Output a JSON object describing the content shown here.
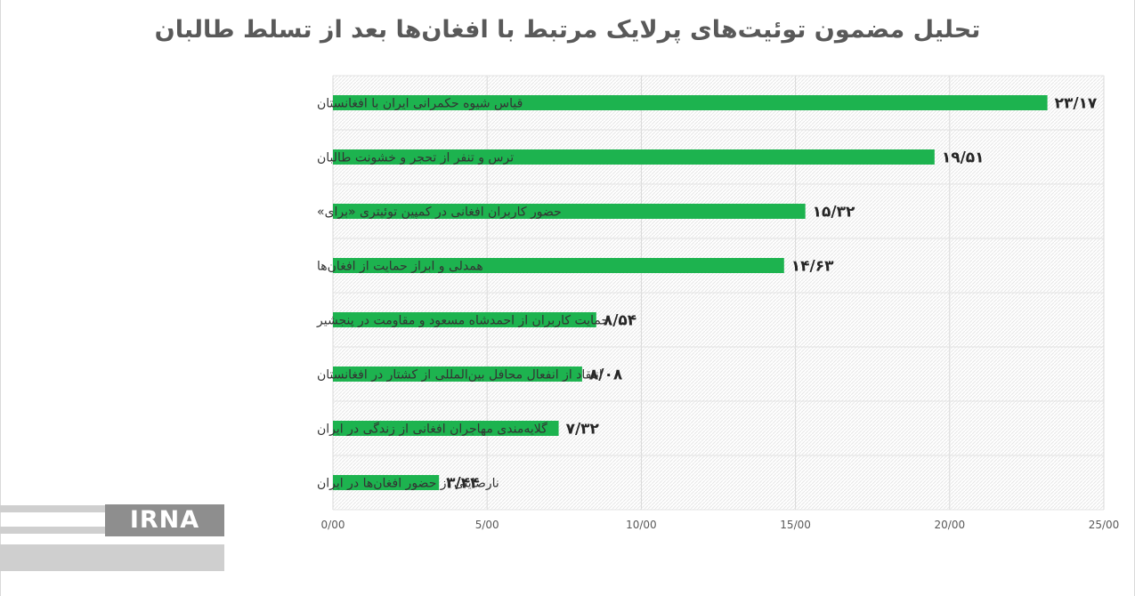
{
  "chart_data": {
    "type": "bar",
    "orientation": "horizontal",
    "title": "تحلیل مضمون توئیت‌های پرلایک مرتبط با افغان‌ها بعد از تسلط طالبان",
    "categories": [
      "قیاس شیوه حکمرانی ایران با افغانستان",
      "ترس و تنفر از تحجر و خشونت طالبان",
      "حضور کاربران افغانی در کمپین توئیتری «برای»",
      "همدلی و ابراز حمایت از افغان‌ها",
      "حمایت کاربران از احمدشاه مسعود و مقاومت در پنجشیر",
      "انتقاد از انفعال محافل بین‌المللی از کشتار در افغانستان",
      "گلایه‌مندی مهاجران افغانی از زندگی در ایران",
      "نارضایتی از حضور افغان‌ها در ایران"
    ],
    "values": [
      23.17,
      19.51,
      15.32,
      14.63,
      8.54,
      8.08,
      7.32,
      3.44
    ],
    "value_labels": [
      "۲۳/۱۷",
      "۱۹/۵۱",
      "۱۵/۳۲",
      "۱۴/۶۳",
      "۸/۵۴",
      "۸/۰۸",
      "۷/۳۲",
      "۳/۴۴"
    ],
    "xlim": [
      0,
      25
    ],
    "x_ticks": [
      0,
      5,
      10,
      15,
      20,
      25
    ],
    "x_tick_labels": [
      "0/00",
      "5/00",
      "10/00",
      "15/00",
      "20/00",
      "25/00"
    ],
    "grid": true,
    "bar_color": "#1db34f"
  },
  "watermark": {
    "logo_text": "IRNA"
  }
}
